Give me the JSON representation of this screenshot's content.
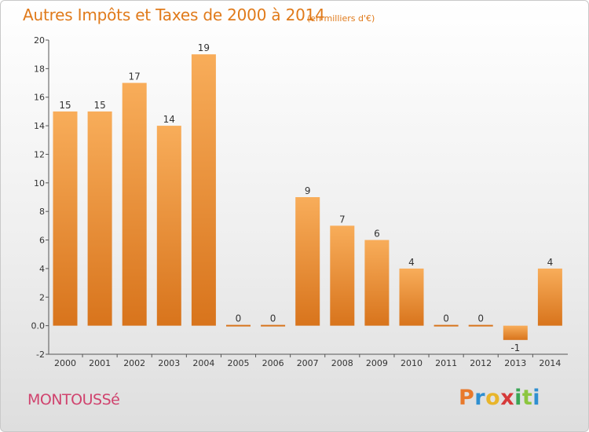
{
  "header": {
    "title": "Autres Impôts et Taxes de 2000 à 2014",
    "subtitle": "(en milliers d'€)"
  },
  "footer": {
    "commune": "MONTOUSSé",
    "logo_letters": [
      "P",
      "r",
      "o",
      "x",
      "i",
      "t",
      "i"
    ],
    "logo_colors": [
      "#e8792b",
      "#2f8fd0",
      "#e8b52b",
      "#d63a3a",
      "#3aa655",
      "#8cc63f",
      "#2f8fd0"
    ]
  },
  "colors": {
    "bar_light": "#f8ad5a",
    "bar_dark": "#d8741c",
    "title": "#e07a1a",
    "commune": "#d0436e"
  },
  "chart_data": {
    "type": "bar",
    "title": "Autres Impôts et Taxes de 2000 à 2014",
    "subtitle": "(en milliers d'€)",
    "categories": [
      "2000",
      "2001",
      "2002",
      "2003",
      "2004",
      "2005",
      "2006",
      "2007",
      "2008",
      "2009",
      "2010",
      "2011",
      "2012",
      "2013",
      "2014"
    ],
    "values": [
      15,
      15,
      17,
      14,
      19,
      0,
      0,
      9,
      7,
      6,
      4,
      0,
      0,
      -1,
      4
    ],
    "data_labels": [
      "15",
      "15",
      "17",
      "14",
      "19",
      "0",
      "0",
      "9",
      "7",
      "6",
      "4",
      "0",
      "0",
      "-1",
      "4"
    ],
    "y_ticks": [
      "-2",
      "0.0",
      "2",
      "4",
      "6",
      "8",
      "10",
      "12",
      "14",
      "16",
      "18",
      "20"
    ],
    "y_tick_values": [
      -2,
      0,
      2,
      4,
      6,
      8,
      10,
      12,
      14,
      16,
      18,
      20
    ],
    "ylim": [
      -2,
      20
    ],
    "grid": false,
    "legend": "none"
  }
}
